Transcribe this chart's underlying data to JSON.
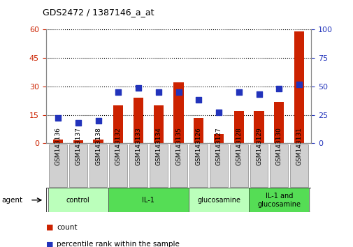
{
  "title": "GDS2472 / 1387146_a_at",
  "samples": [
    "GSM143136",
    "GSM143137",
    "GSM143138",
    "GSM143132",
    "GSM143133",
    "GSM143134",
    "GSM143135",
    "GSM143126",
    "GSM143127",
    "GSM143128",
    "GSM143129",
    "GSM143130",
    "GSM143131"
  ],
  "count_values": [
    2,
    1.5,
    2,
    20,
    24,
    20,
    32,
    13.5,
    5,
    17,
    17,
    22,
    59
  ],
  "percentile_values": [
    22,
    18,
    20,
    45,
    49,
    45,
    45,
    38,
    27,
    45,
    43,
    48,
    52
  ],
  "ylim_left": [
    0,
    60
  ],
  "ylim_right": [
    0,
    100
  ],
  "yticks_left": [
    0,
    15,
    30,
    45,
    60
  ],
  "yticks_right": [
    0,
    25,
    50,
    75,
    100
  ],
  "bar_color": "#cc2200",
  "dot_color": "#2233bb",
  "grid_color": "#000000",
  "tick_bg_color": "#d0d0d0",
  "tick_edge_color": "#888888",
  "agent_groups": [
    {
      "label": "control",
      "start": 0,
      "end": 3,
      "color": "#bbffbb"
    },
    {
      "label": "IL-1",
      "start": 3,
      "end": 7,
      "color": "#55dd55"
    },
    {
      "label": "glucosamine",
      "start": 7,
      "end": 10,
      "color": "#bbffbb"
    },
    {
      "label": "IL-1 and\nglucosamine",
      "start": 10,
      "end": 13,
      "color": "#55dd55"
    }
  ],
  "legend_items": [
    {
      "label": "count",
      "color": "#cc2200"
    },
    {
      "label": "percentile rank within the sample",
      "color": "#2233bb"
    }
  ],
  "bar_width": 0.5,
  "dot_size": 35,
  "figsize": [
    5.06,
    3.54
  ],
  "dpi": 100
}
